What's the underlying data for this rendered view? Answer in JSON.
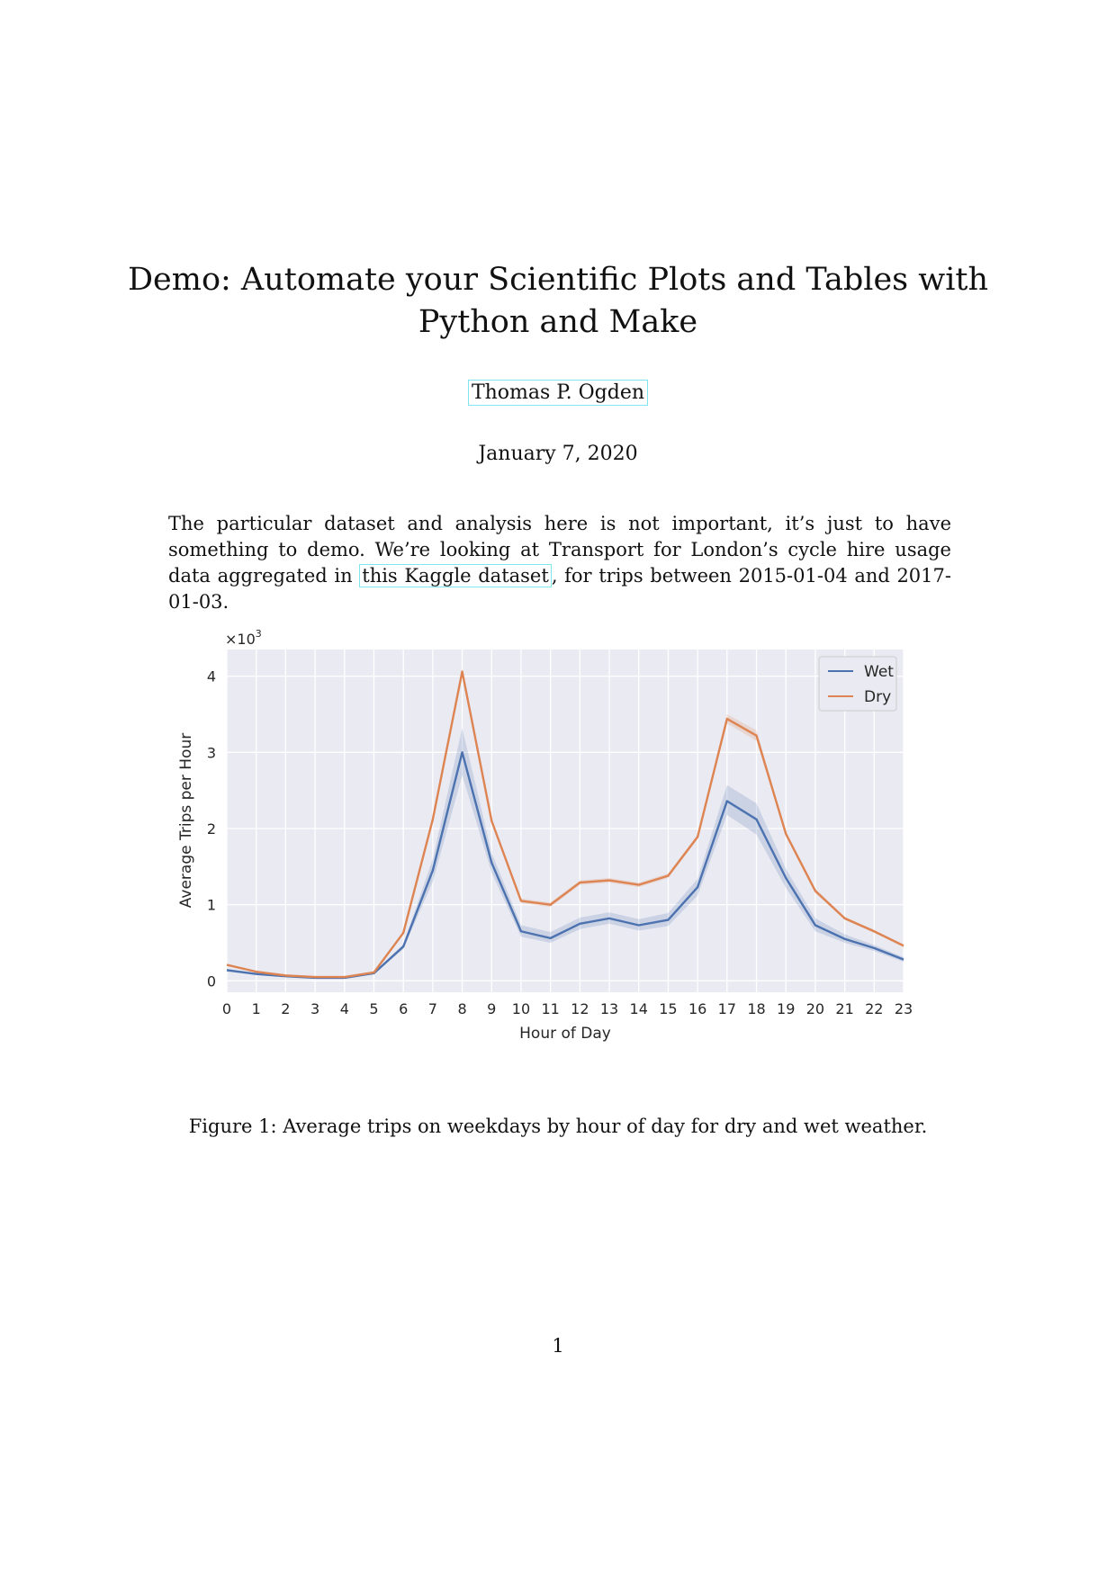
{
  "paper": {
    "title_line1": "Demo: Automate your Scientific Plots and Tables with",
    "title_line2": "Python and Make",
    "author": "Thomas P. Ogden",
    "date": "January 7, 2020",
    "abstract_part1": "The particular dataset and analysis here is not important, it’s just to have something to demo. We’re looking at Transport for London’s cycle hire usage data aggregated in ",
    "abstract_link": "this Kaggle dataset",
    "abstract_part2": ", for trips between 2015-01-04 and 2017-01-03.",
    "caption": "Figure 1: Average trips on weekdays by hour of day for dry and wet weather.",
    "page_number": "1"
  },
  "chart_data": {
    "type": "line",
    "title": "",
    "xlabel": "Hour of Day",
    "ylabel": "Average Trips per Hour",
    "y_multiplier_label": "×10",
    "y_multiplier_exp": "3",
    "x": [
      0,
      1,
      2,
      3,
      4,
      5,
      6,
      7,
      8,
      9,
      10,
      11,
      12,
      13,
      14,
      15,
      16,
      17,
      18,
      19,
      20,
      21,
      22,
      23
    ],
    "xlim": [
      0,
      23
    ],
    "ylim": [
      -0.15,
      4.35
    ],
    "yticks": [
      0,
      1,
      2,
      3,
      4
    ],
    "grid": true,
    "legend_position": "top-right",
    "series": [
      {
        "name": "Wet",
        "color": "#4c72b0",
        "values": [
          0.14,
          0.09,
          0.06,
          0.04,
          0.04,
          0.1,
          0.45,
          1.45,
          3.0,
          1.55,
          0.65,
          0.56,
          0.75,
          0.82,
          0.73,
          0.8,
          1.23,
          2.36,
          2.12,
          1.35,
          0.73,
          0.55,
          0.43,
          0.28
        ],
        "ci_low": [
          0.12,
          0.08,
          0.05,
          0.03,
          0.03,
          0.09,
          0.42,
          1.3,
          2.7,
          1.42,
          0.58,
          0.5,
          0.68,
          0.75,
          0.66,
          0.72,
          1.12,
          2.18,
          1.92,
          1.22,
          0.65,
          0.5,
          0.39,
          0.25
        ],
        "ci_high": [
          0.16,
          0.1,
          0.07,
          0.05,
          0.05,
          0.11,
          0.48,
          1.6,
          3.32,
          1.68,
          0.73,
          0.64,
          0.83,
          0.9,
          0.81,
          0.89,
          1.34,
          2.57,
          2.33,
          1.47,
          0.82,
          0.61,
          0.47,
          0.31
        ]
      },
      {
        "name": "Dry",
        "color": "#dd8452",
        "values": [
          0.21,
          0.12,
          0.07,
          0.05,
          0.05,
          0.11,
          0.63,
          2.12,
          4.06,
          2.1,
          1.05,
          1.0,
          1.29,
          1.32,
          1.26,
          1.38,
          1.89,
          3.44,
          3.22,
          1.93,
          1.18,
          0.82,
          0.65,
          0.46
        ],
        "ci_low": [
          0.2,
          0.11,
          0.06,
          0.04,
          0.04,
          0.1,
          0.61,
          2.08,
          4.0,
          2.06,
          1.02,
          0.97,
          1.26,
          1.29,
          1.23,
          1.35,
          1.86,
          3.38,
          3.15,
          1.9,
          1.15,
          0.8,
          0.63,
          0.44
        ],
        "ci_high": [
          0.22,
          0.13,
          0.08,
          0.06,
          0.06,
          0.12,
          0.65,
          2.16,
          4.11,
          2.14,
          1.08,
          1.03,
          1.32,
          1.35,
          1.29,
          1.41,
          1.92,
          3.5,
          3.29,
          1.96,
          1.21,
          0.84,
          0.67,
          0.48
        ]
      }
    ]
  }
}
